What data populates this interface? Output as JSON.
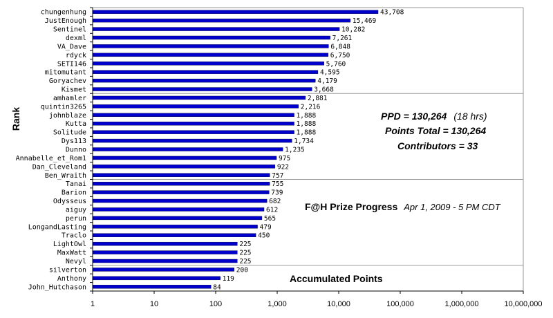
{
  "chart_data": {
    "type": "bar",
    "orientation": "horizontal",
    "x_scale": "log",
    "xlim": [
      1,
      10000000
    ],
    "x_ticks": [
      "1",
      "10",
      "100",
      "1,000",
      "10,000",
      "100,000",
      "1,000,000",
      "10,000,000"
    ],
    "ylabel": "Rank",
    "grid": "horizontal group separators",
    "bar_color": "#0000cc",
    "categories": [
      "chungenhung",
      "JustEnough",
      "Sentinel",
      "dexml",
      "VA_Dave",
      "rdyck",
      "SETI146",
      "mitomutant",
      "Goryachev",
      "Kismet",
      "amhamler",
      "quintin3265",
      "johnblaze",
      "Kutta",
      "Solitude",
      "Dys113",
      "Dunno",
      "Annabelle_et_Rom1",
      "Dan_Cleveland",
      "Ben_Wraith",
      "Tanai",
      "Barion",
      "Odysseus",
      "aiguy",
      "perun",
      "LongandLasting",
      "Traclo",
      "LightOwl",
      "MaxWatt",
      "Nevyl",
      "silverton",
      "Anthony",
      "John_Hutchason"
    ],
    "values": [
      43708,
      15469,
      10282,
      7261,
      6848,
      6750,
      5760,
      4595,
      4179,
      3668,
      2881,
      2216,
      1888,
      1888,
      1888,
      1734,
      1235,
      975,
      922,
      757,
      755,
      739,
      682,
      612,
      565,
      479,
      450,
      225,
      225,
      225,
      200,
      119,
      84
    ],
    "value_labels": [
      "43,708",
      "15,469",
      "10,282",
      "7,261",
      "6,848",
      "6,750",
      "5,760",
      "4,595",
      "4,179",
      "3,668",
      "2,881",
      "2,216",
      "1,888",
      "1,888",
      "1,888",
      "1,734",
      "1,235",
      "975",
      "922",
      "757",
      "755",
      "739",
      "682",
      "612",
      "565",
      "479",
      "450",
      "225",
      "225",
      "225",
      "200",
      "119",
      "84"
    ]
  },
  "annotations": {
    "ppd_bold": "PPD = 130,264",
    "ppd_hours": "(18 hrs)",
    "points_total": "Points Total = 130,264",
    "contributors": "Contributors = 33",
    "prize_title": "F@H Prize Progress",
    "prize_date": "Apr 1, 2009 - 5 PM CDT",
    "accumulated": "Accumulated Points"
  }
}
